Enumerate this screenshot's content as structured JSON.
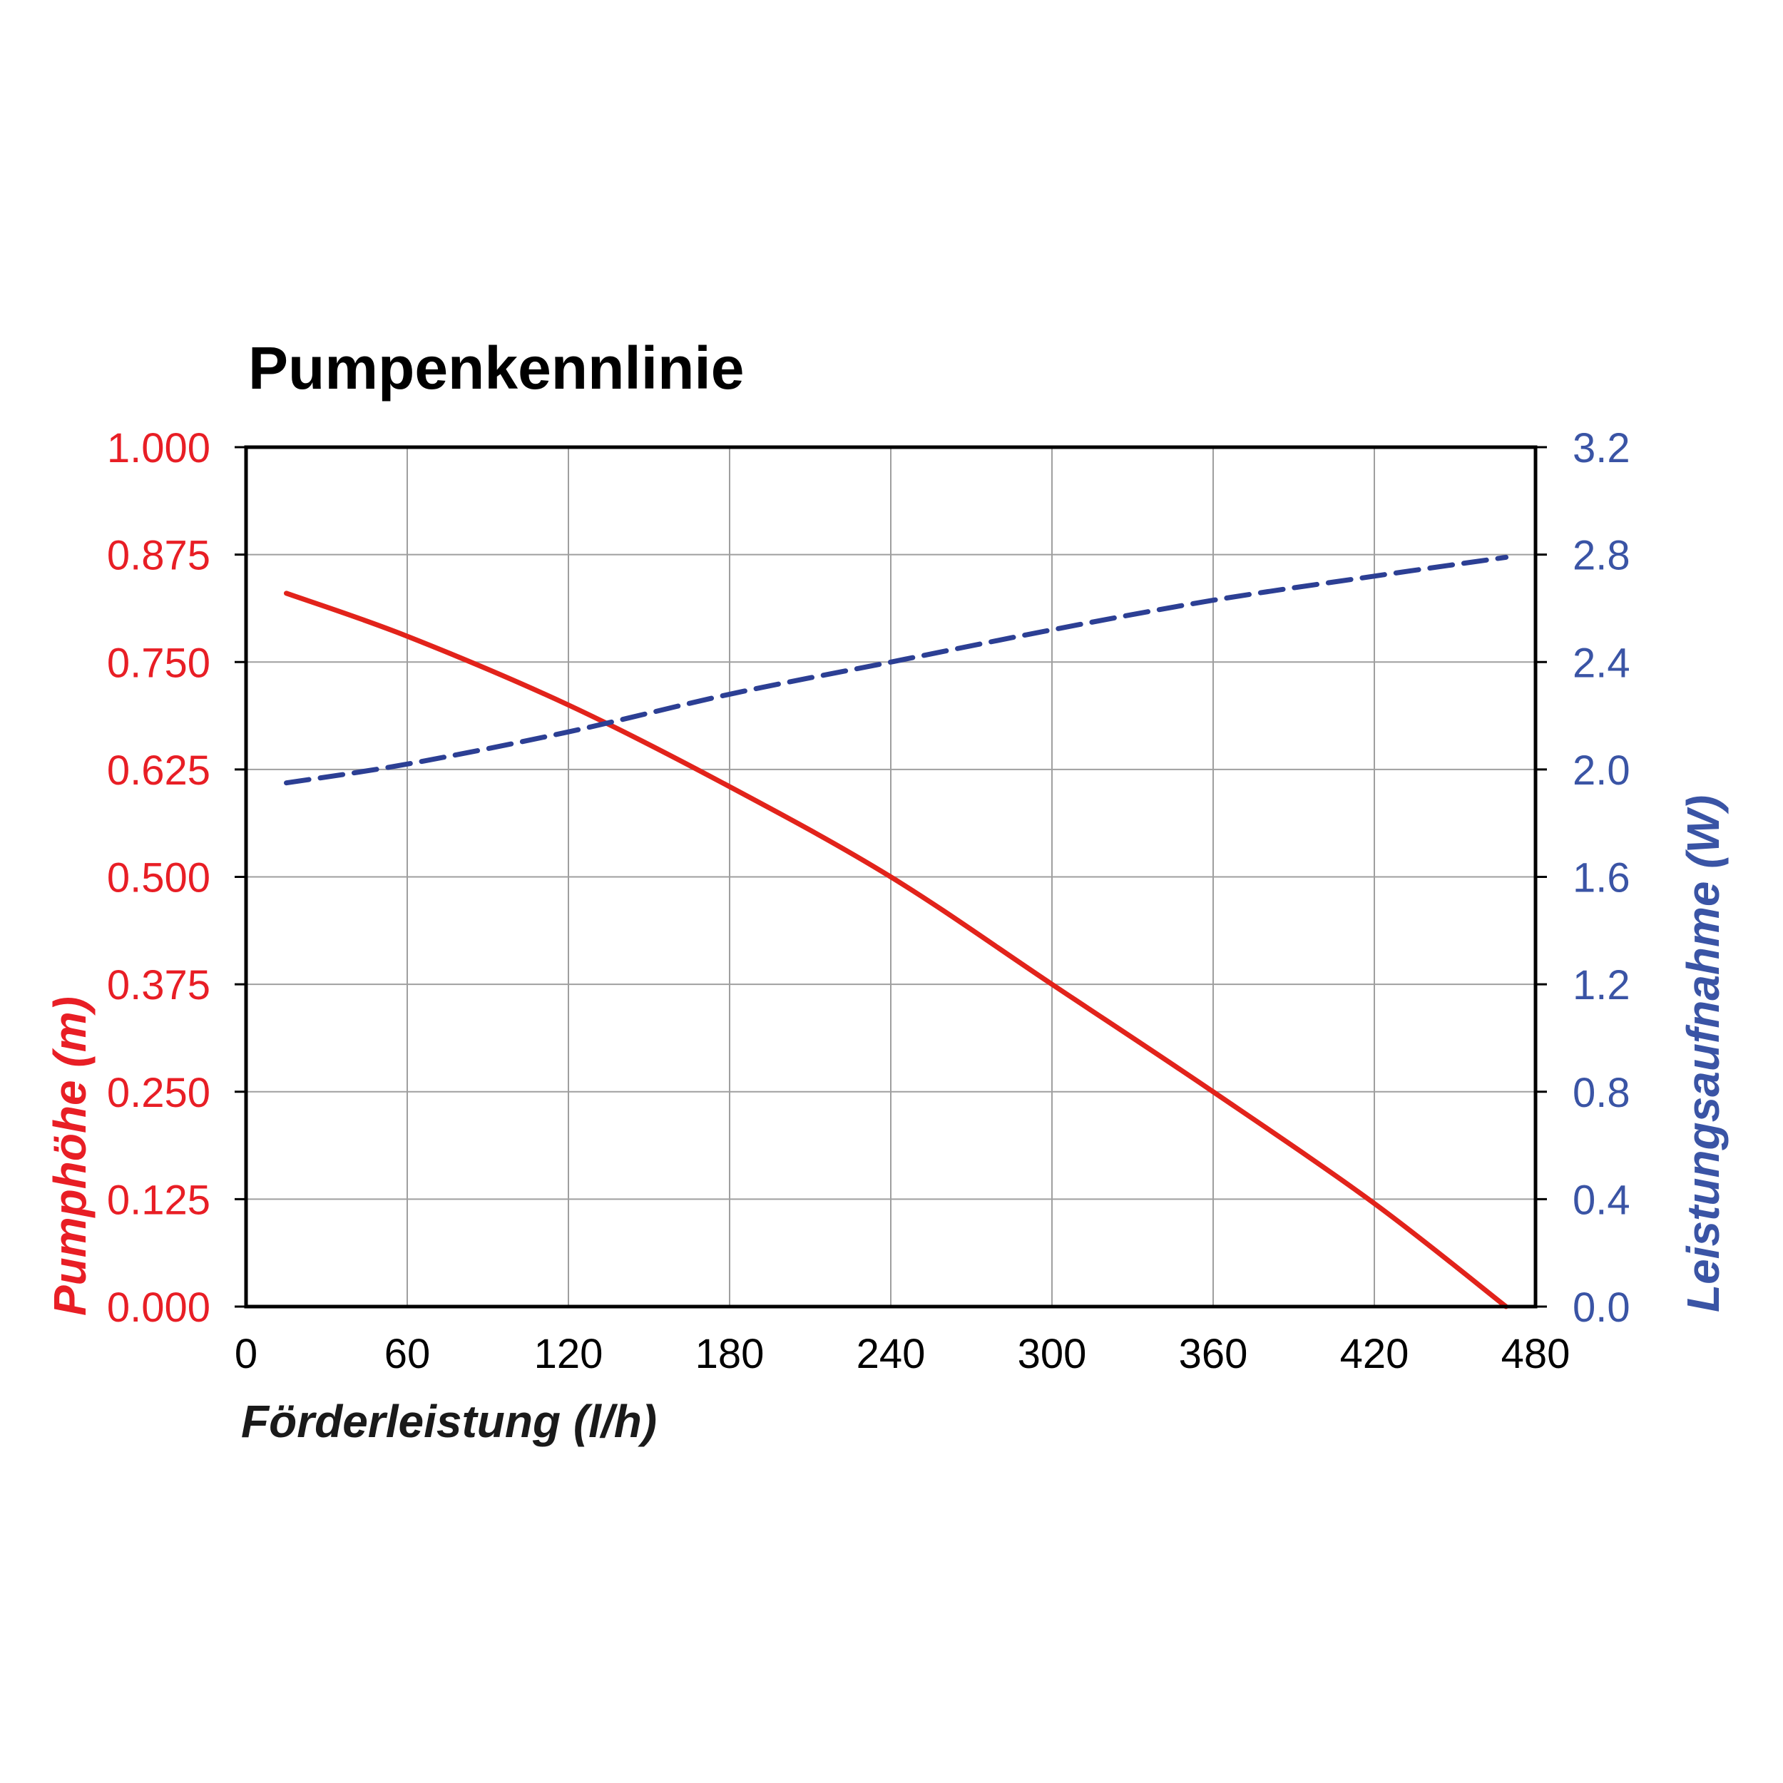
{
  "chart_data": {
    "type": "line",
    "title": "Pumpenkennlinie",
    "x_axis": {
      "label": "Förderleistung (l/h)",
      "min": 0,
      "max": 480,
      "tick_values": [
        0,
        60,
        120,
        180,
        240,
        300,
        360,
        420,
        480
      ],
      "tick_labels": [
        "0",
        "60",
        "120",
        "180",
        "240",
        "300",
        "360",
        "420",
        "480"
      ]
    },
    "y_left": {
      "label": "Pumphöhe (m)",
      "min": 0,
      "max": 1.0,
      "tick_values": [
        1.0,
        0.875,
        0.75,
        0.625,
        0.5,
        0.375,
        0.25,
        0.125,
        0.0
      ],
      "tick_labels": [
        "1.000",
        "0.875",
        "0.750",
        "0.625",
        "0.500",
        "0.375",
        "0.250",
        "0.125",
        "0.000"
      ],
      "text_color": "#e81e25"
    },
    "y_right": {
      "label": "Leistungsaufnahme (W)",
      "min": 0,
      "max": 3.2,
      "tick_values": [
        3.2,
        2.8,
        2.4,
        2.0,
        1.6,
        1.2,
        0.8,
        0.4,
        0.0
      ],
      "tick_labels": [
        "3.2",
        "2.8",
        "2.4",
        "2.0",
        "1.6",
        "1.2",
        "0.8",
        "0.4",
        "0.0"
      ],
      "text_color": "#3a54a5"
    },
    "grid": true,
    "legend_position": "none",
    "series": [
      {
        "name": "Pumphöhe",
        "axis": "left",
        "style": "solid",
        "color": "#e2231b",
        "stroke_width": 7,
        "x": [
          15,
          60,
          120,
          180,
          240,
          300,
          360,
          420,
          469
        ],
        "y": [
          0.83,
          0.78,
          0.7,
          0.605,
          0.5,
          0.375,
          0.25,
          0.12,
          0.0
        ]
      },
      {
        "name": "Leistungsaufnahme",
        "axis": "right",
        "style": "dashed",
        "dash": [
          32,
          16
        ],
        "color": "#2c3f94",
        "stroke_width": 7,
        "x": [
          15,
          60,
          120,
          180,
          240,
          300,
          360,
          420,
          469
        ],
        "y": [
          1.95,
          2.02,
          2.14,
          2.28,
          2.4,
          2.52,
          2.63,
          2.72,
          2.79
        ]
      }
    ]
  },
  "styles": {
    "grid_color": "#9f9f9f",
    "axis_color": "#000000",
    "background": "#ffffff"
  }
}
